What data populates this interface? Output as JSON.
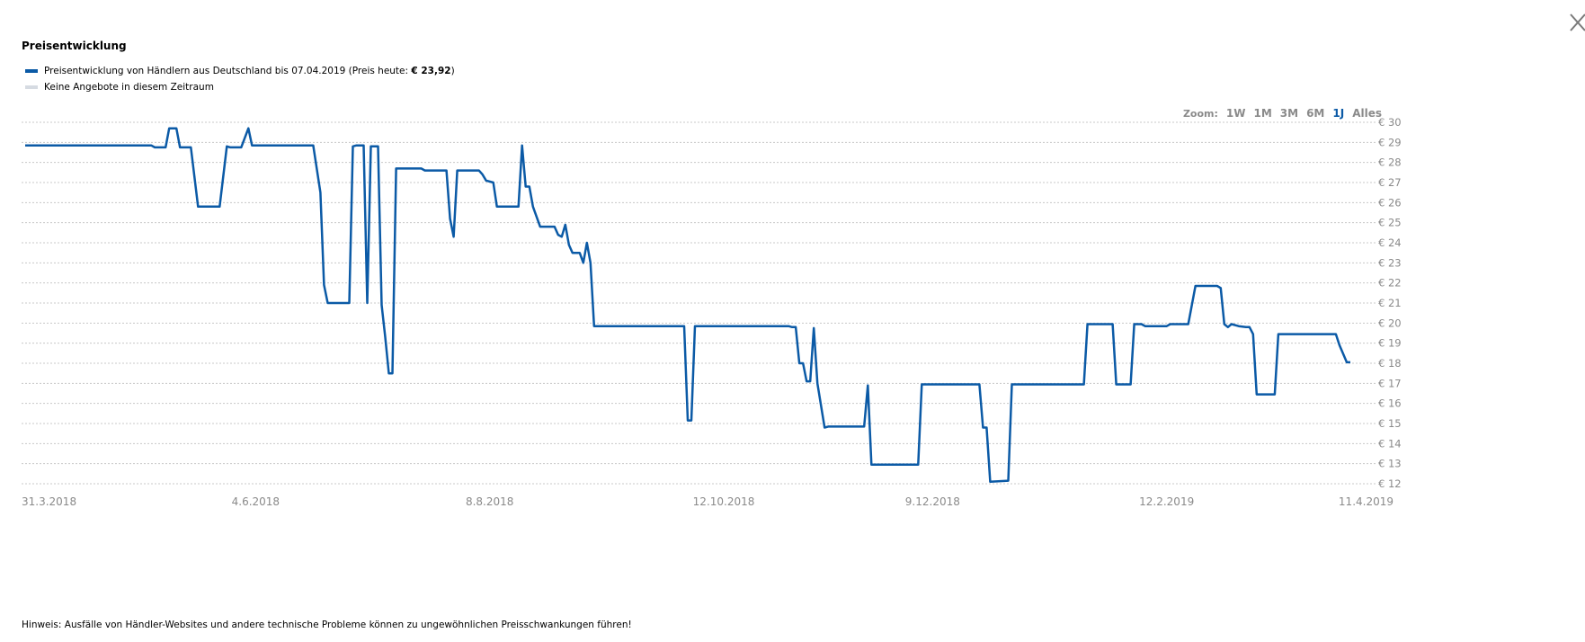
{
  "title": "Preisentwicklung",
  "legend": {
    "series_prefix": "Preisentwicklung von Händlern aus Deutschland bis 07.04.2019 (Preis heute: ",
    "series_price": "€ 23,92",
    "series_suffix": ")",
    "no_offers": "Keine Angebote in diesem Zeitraum"
  },
  "zoom": {
    "label": "Zoom:",
    "buttons": [
      "1W",
      "1M",
      "3M",
      "6M",
      "1J",
      "Alles"
    ],
    "active": "1J"
  },
  "footer": "Hinweis: Ausfälle von Händler-Websites und andere technische Probleme können zu ungewöhnlichen Preisschwankungen führen!",
  "colors": {
    "series": "#0b5aa6",
    "no_offers": "#d6dbe2",
    "grid": "#c8c8c8",
    "axis_text": "#8a8a8a"
  },
  "chart_data": {
    "type": "line",
    "x_axis": {
      "type": "date",
      "min": "2018-03-31",
      "max": "2019-04-11",
      "tick_labels": [
        "31.3.2018",
        "4.6.2018",
        "8.8.2018",
        "12.10.2018",
        "9.12.2018",
        "12.2.2019",
        "11.4.2019"
      ],
      "tick_dates": [
        "2018-03-31",
        "2018-06-04",
        "2018-08-08",
        "2018-10-12",
        "2018-12-09",
        "2019-02-12",
        "2019-04-11"
      ]
    },
    "y_axis": {
      "min": 12,
      "max": 30,
      "ticks": [
        12,
        13,
        14,
        15,
        16,
        17,
        18,
        19,
        20,
        21,
        22,
        23,
        24,
        25,
        26,
        27,
        28,
        29,
        30
      ],
      "tick_prefix": "€ ",
      "position": "right",
      "grid": true
    },
    "series": [
      {
        "name": "Preisentwicklung von Händlern aus Deutschland bis 07.04.2019",
        "points": [
          [
            "2018-04-01",
            28.85
          ],
          [
            "2018-05-06",
            28.85
          ],
          [
            "2018-05-07",
            28.75
          ],
          [
            "2018-05-10",
            28.75
          ],
          [
            "2018-05-11",
            29.7
          ],
          [
            "2018-05-13",
            29.7
          ],
          [
            "2018-05-14",
            28.75
          ],
          [
            "2018-05-17",
            28.75
          ],
          [
            "2018-05-19",
            25.8
          ],
          [
            "2018-05-25",
            25.8
          ],
          [
            "2018-05-27",
            28.8
          ],
          [
            "2018-05-28",
            28.75
          ],
          [
            "2018-05-31",
            28.75
          ],
          [
            "2018-06-02",
            29.7
          ],
          [
            "2018-06-03",
            28.85
          ],
          [
            "2018-06-20",
            28.85
          ],
          [
            "2018-06-22",
            26.5
          ],
          [
            "2018-06-23",
            21.9
          ],
          [
            "2018-06-24",
            21.0
          ],
          [
            "2018-06-30",
            21.0
          ],
          [
            "2018-07-01",
            28.8
          ],
          [
            "2018-07-02",
            28.85
          ],
          [
            "2018-07-04",
            28.85
          ],
          [
            "2018-07-05",
            21.0
          ],
          [
            "2018-07-06",
            28.8
          ],
          [
            "2018-07-08",
            28.8
          ],
          [
            "2018-07-09",
            20.9
          ],
          [
            "2018-07-10",
            19.3
          ],
          [
            "2018-07-11",
            17.5
          ],
          [
            "2018-07-12",
            17.5
          ],
          [
            "2018-07-13",
            27.7
          ],
          [
            "2018-07-20",
            27.7
          ],
          [
            "2018-07-21",
            27.6
          ],
          [
            "2018-07-27",
            27.6
          ],
          [
            "2018-07-28",
            25.2
          ],
          [
            "2018-07-29",
            24.3
          ],
          [
            "2018-07-30",
            27.6
          ],
          [
            "2018-08-05",
            27.6
          ],
          [
            "2018-08-06",
            27.4
          ],
          [
            "2018-08-07",
            27.1
          ],
          [
            "2018-08-09",
            27.0
          ],
          [
            "2018-08-10",
            25.8
          ],
          [
            "2018-08-16",
            25.8
          ],
          [
            "2018-08-17",
            28.85
          ],
          [
            "2018-08-18",
            26.8
          ],
          [
            "2018-08-19",
            26.8
          ],
          [
            "2018-08-20",
            25.8
          ],
          [
            "2018-08-22",
            24.8
          ],
          [
            "2018-08-26",
            24.8
          ],
          [
            "2018-08-27",
            24.4
          ],
          [
            "2018-08-28",
            24.3
          ],
          [
            "2018-08-29",
            24.9
          ],
          [
            "2018-08-30",
            23.9
          ],
          [
            "2018-08-31",
            23.5
          ],
          [
            "2018-09-02",
            23.5
          ],
          [
            "2018-09-03",
            23.0
          ],
          [
            "2018-09-04",
            24.0
          ],
          [
            "2018-09-05",
            23.0
          ],
          [
            "2018-09-06",
            19.85
          ],
          [
            "2018-10-01",
            19.85
          ],
          [
            "2018-10-02",
            15.15
          ],
          [
            "2018-10-03",
            15.15
          ],
          [
            "2018-10-04",
            19.85
          ],
          [
            "2018-10-30",
            19.85
          ],
          [
            "2018-10-31",
            19.8
          ],
          [
            "2018-11-01",
            19.8
          ],
          [
            "2018-11-02",
            18.0
          ],
          [
            "2018-11-03",
            18.0
          ],
          [
            "2018-11-04",
            17.1
          ],
          [
            "2018-11-05",
            17.1
          ],
          [
            "2018-11-06",
            19.75
          ],
          [
            "2018-11-07",
            17.0
          ],
          [
            "2018-11-09",
            14.8
          ],
          [
            "2018-11-10",
            14.85
          ],
          [
            "2018-11-20",
            14.85
          ],
          [
            "2018-11-21",
            16.9
          ],
          [
            "2018-11-22",
            12.95
          ],
          [
            "2018-12-05",
            12.95
          ],
          [
            "2018-12-06",
            16.95
          ],
          [
            "2018-12-22",
            16.95
          ],
          [
            "2018-12-23",
            14.8
          ],
          [
            "2018-12-24",
            14.8
          ],
          [
            "2018-12-25",
            12.1
          ],
          [
            "2018-12-30",
            12.15
          ],
          [
            "2018-12-31",
            16.95
          ],
          [
            "2019-01-20",
            16.95
          ],
          [
            "2019-01-21",
            19.95
          ],
          [
            "2019-01-28",
            19.95
          ],
          [
            "2019-01-29",
            16.95
          ],
          [
            "2019-02-02",
            16.95
          ],
          [
            "2019-02-03",
            19.95
          ],
          [
            "2019-02-05",
            19.95
          ],
          [
            "2019-02-06",
            19.85
          ],
          [
            "2019-02-12",
            19.85
          ],
          [
            "2019-02-13",
            19.95
          ],
          [
            "2019-02-18",
            19.95
          ],
          [
            "2019-02-20",
            21.85
          ],
          [
            "2019-02-26",
            21.85
          ],
          [
            "2019-02-27",
            21.75
          ],
          [
            "2019-02-28",
            19.95
          ],
          [
            "2019-03-01",
            19.8
          ],
          [
            "2019-03-02",
            19.95
          ],
          [
            "2019-03-04",
            19.85
          ],
          [
            "2019-03-06",
            19.8
          ],
          [
            "2019-03-07",
            19.8
          ],
          [
            "2019-03-08",
            19.45
          ],
          [
            "2019-03-09",
            16.45
          ],
          [
            "2019-03-14",
            16.45
          ],
          [
            "2019-03-15",
            19.45
          ],
          [
            "2019-03-31",
            19.45
          ],
          [
            "2019-04-01",
            18.9
          ],
          [
            "2019-04-03",
            18.05
          ],
          [
            "2019-04-04",
            18.05
          ],
          [
            "2019-01-20",
            null
          ]
        ]
      }
    ]
  }
}
